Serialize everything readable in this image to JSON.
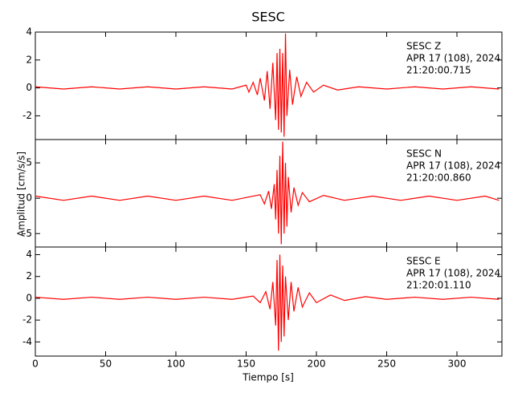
{
  "figure": {
    "title": "SESC",
    "x_label": "Tiempo [s]",
    "y_label": "Amplitud [cm/s/s]",
    "xlim": [
      0,
      332
    ],
    "xticks": [
      0,
      50,
      100,
      150,
      200,
      250,
      300
    ]
  },
  "chart_data": [
    {
      "type": "line",
      "color": "#ff0000",
      "ylim": [
        -3.7,
        4
      ],
      "yticks": [
        -2,
        0,
        2,
        4
      ],
      "grid": false,
      "annotations": [
        "SESC   Z",
        "APR 17 (108), 2024",
        "21:20:00.715"
      ],
      "x": [
        0,
        20,
        40,
        60,
        80,
        100,
        120,
        140,
        150,
        152,
        155,
        158,
        160,
        163,
        165,
        167,
        169,
        171,
        172,
        173,
        174,
        175,
        176,
        177,
        178,
        179,
        181,
        183,
        186,
        189,
        193,
        198,
        205,
        215,
        230,
        250,
        270,
        290,
        310,
        330
      ],
      "values": [
        0.08,
        -0.08,
        0.08,
        -0.08,
        0.08,
        -0.08,
        0.08,
        -0.08,
        0.2,
        -0.3,
        0.4,
        -0.5,
        0.7,
        -0.9,
        1.2,
        -1.5,
        1.8,
        -2.3,
        2.5,
        -3.0,
        2.8,
        -3.2,
        2.5,
        -3.5,
        3.9,
        -2.0,
        1.3,
        -1.2,
        0.8,
        -0.6,
        0.4,
        -0.3,
        0.2,
        -0.15,
        0.08,
        -0.08,
        0.08,
        -0.08,
        0.08,
        -0.08
      ]
    },
    {
      "type": "line",
      "color": "#ff0000",
      "ylim": [
        -6.9,
        8.3
      ],
      "yticks": [
        -5,
        0,
        5
      ],
      "grid": false,
      "annotations": [
        "SESC   N",
        "APR 17 (108), 2024",
        "21:20:00.860"
      ],
      "x": [
        0,
        20,
        40,
        60,
        80,
        100,
        120,
        140,
        160,
        163,
        166,
        168,
        170,
        171,
        172,
        173,
        174,
        175,
        176,
        177,
        178,
        179,
        180,
        182,
        184,
        187,
        190,
        195,
        205,
        220,
        240,
        260,
        280,
        300,
        320,
        330
      ],
      "values": [
        0.3,
        -0.3,
        0.3,
        -0.3,
        0.3,
        -0.3,
        0.3,
        -0.3,
        0.5,
        -0.8,
        1,
        -1.5,
        2,
        -3,
        4,
        -5,
        6,
        -6.5,
        8,
        -5,
        5,
        -4,
        3,
        -2,
        1.5,
        -1,
        0.8,
        -0.5,
        0.4,
        -0.3,
        0.3,
        -0.3,
        0.3,
        -0.3,
        0.3,
        -0.3
      ]
    },
    {
      "type": "line",
      "color": "#ff0000",
      "ylim": [
        -5.3,
        4.7
      ],
      "yticks": [
        -4,
        -2,
        0,
        2,
        4
      ],
      "grid": false,
      "annotations": [
        "SESC   E",
        "APR 17 (108), 2024",
        "21:20:01.110"
      ],
      "x": [
        0,
        20,
        40,
        60,
        80,
        100,
        120,
        140,
        155,
        160,
        164,
        167,
        169,
        171,
        172,
        173,
        174,
        175,
        176,
        177,
        178,
        180,
        182,
        184,
        187,
        190,
        195,
        200,
        210,
        220,
        235,
        250,
        270,
        290,
        310,
        330
      ],
      "values": [
        0.1,
        -0.1,
        0.1,
        -0.1,
        0.1,
        -0.1,
        0.1,
        -0.1,
        0.2,
        -0.4,
        0.6,
        -1,
        1.5,
        -2.5,
        3.5,
        -4.8,
        4,
        -4,
        3,
        -3.5,
        2,
        -2,
        1.5,
        -1.2,
        1,
        -0.8,
        0.5,
        -0.4,
        0.3,
        -0.2,
        0.15,
        -0.1,
        0.1,
        -0.1,
        0.1,
        -0.1
      ]
    }
  ]
}
